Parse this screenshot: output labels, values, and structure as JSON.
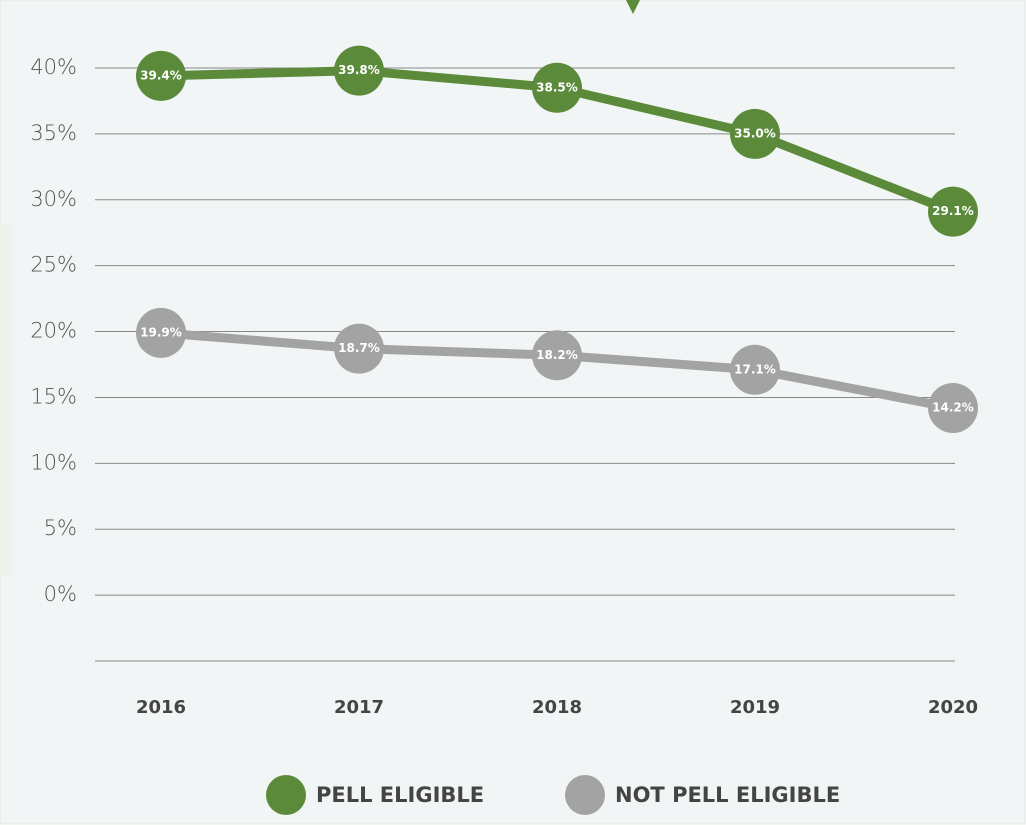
{
  "chart_data": {
    "type": "line",
    "categories": [
      "2016",
      "2017",
      "2018",
      "2019",
      "2020"
    ],
    "series": [
      {
        "name": "PELL ELIGIBLE",
        "color": "#5b8a3a",
        "values": [
          39.4,
          39.8,
          38.5,
          35.0,
          29.1
        ],
        "value_labels": [
          "39.4%",
          "39.8%",
          "38.5%",
          "35.0%",
          "29.1%"
        ]
      },
      {
        "name": "NOT PELL ELIGIBLE",
        "color": "#a3a3a3",
        "values": [
          19.9,
          18.7,
          18.2,
          17.1,
          14.2
        ],
        "value_labels": [
          "19.9%",
          "18.7%",
          "18.2%",
          "17.1%",
          "14.2%"
        ]
      }
    ],
    "ylim": [
      -5,
      40
    ],
    "yticks": [
      {
        "value": 0,
        "label": "0%"
      },
      {
        "value": 5,
        "label": "5%"
      },
      {
        "value": 10,
        "label": "10%"
      },
      {
        "value": 15,
        "label": "15%"
      },
      {
        "value": 20,
        "label": "20%"
      },
      {
        "value": 25,
        "label": "25%"
      },
      {
        "value": 30,
        "label": "30%"
      },
      {
        "value": 35,
        "label": "35%"
      },
      {
        "value": 40,
        "label": "40%"
      }
    ],
    "grid": true
  }
}
